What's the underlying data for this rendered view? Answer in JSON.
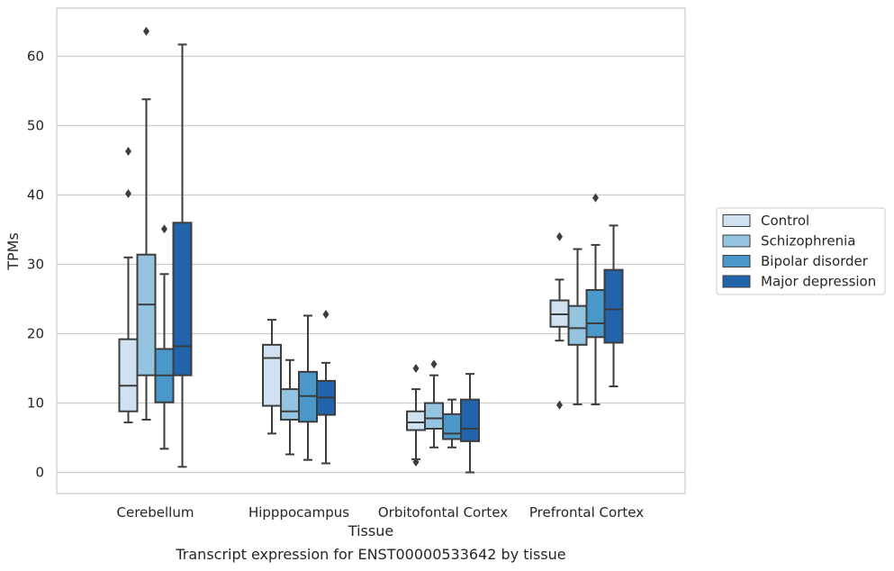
{
  "chart_data": {
    "type": "box",
    "title": "",
    "caption": "Transcript expression for ENST00000533642 by tissue",
    "xlabel": "Tissue",
    "ylabel": "TPMs",
    "ylim": [
      -3,
      67
    ],
    "yticks": [
      0,
      10,
      20,
      30,
      40,
      50,
      60
    ],
    "grid": "horizontal",
    "legend_position": "outside-right",
    "categories": [
      "Cerebellum",
      "Hipppocampus",
      "Orbitofontal Cortex",
      "Prefrontal Cortex"
    ],
    "series": [
      {
        "name": "Control",
        "color": "#d0e1f2",
        "boxes": [
          {
            "whislo": 7.2,
            "q1": 8.8,
            "med": 12.5,
            "q3": 19.2,
            "whishi": 31.0,
            "fliers": [
              40.2,
              46.3
            ]
          },
          {
            "whislo": 5.6,
            "q1": 9.6,
            "med": 16.5,
            "q3": 18.4,
            "whishi": 22.0,
            "fliers": []
          },
          {
            "whislo": 1.9,
            "q1": 6.1,
            "med": 7.2,
            "q3": 8.8,
            "whishi": 12.0,
            "fliers": [
              1.5,
              15.0
            ]
          },
          {
            "whislo": 19.0,
            "q1": 21.0,
            "med": 22.8,
            "q3": 24.8,
            "whishi": 27.8,
            "fliers": [
              9.7,
              34.0
            ]
          }
        ]
      },
      {
        "name": "Schizophrenia",
        "color": "#94c4df",
        "boxes": [
          {
            "whislo": 7.6,
            "q1": 14.0,
            "med": 24.2,
            "q3": 31.4,
            "whishi": 53.8,
            "fliers": [
              63.6
            ]
          },
          {
            "whislo": 2.6,
            "q1": 7.6,
            "med": 8.8,
            "q3": 12.0,
            "whishi": 16.2,
            "fliers": []
          },
          {
            "whislo": 3.6,
            "q1": 6.3,
            "med": 7.8,
            "q3": 10.0,
            "whishi": 14.0,
            "fliers": [
              15.6
            ]
          },
          {
            "whislo": 9.8,
            "q1": 18.4,
            "med": 20.8,
            "q3": 24.0,
            "whishi": 32.2,
            "fliers": []
          }
        ]
      },
      {
        "name": "Bipolar disorder",
        "color": "#4a98c9",
        "boxes": [
          {
            "whislo": 3.4,
            "q1": 10.1,
            "med": 14.0,
            "q3": 17.8,
            "whishi": 28.6,
            "fliers": [
              35.1
            ]
          },
          {
            "whislo": 1.8,
            "q1": 7.3,
            "med": 11.0,
            "q3": 14.5,
            "whishi": 22.6,
            "fliers": []
          },
          {
            "whislo": 3.6,
            "q1": 4.8,
            "med": 5.6,
            "q3": 8.4,
            "whishi": 10.5,
            "fliers": []
          },
          {
            "whislo": 9.8,
            "q1": 19.5,
            "med": 21.5,
            "q3": 26.3,
            "whishi": 32.8,
            "fliers": [
              39.6
            ]
          }
        ]
      },
      {
        "name": "Major depression",
        "color": "#2164ab",
        "boxes": [
          {
            "whislo": 0.8,
            "q1": 14.0,
            "med": 18.2,
            "q3": 36.0,
            "whishi": 61.7,
            "fliers": []
          },
          {
            "whislo": 1.3,
            "q1": 8.3,
            "med": 10.8,
            "q3": 13.2,
            "whishi": 15.8,
            "fliers": [
              22.8
            ]
          },
          {
            "whislo": 0.0,
            "q1": 4.5,
            "med": 6.3,
            "q3": 10.5,
            "whishi": 14.2,
            "fliers": []
          },
          {
            "whislo": 12.4,
            "q1": 18.7,
            "med": 23.5,
            "q3": 29.2,
            "whishi": 35.6,
            "fliers": []
          }
        ]
      }
    ]
  }
}
